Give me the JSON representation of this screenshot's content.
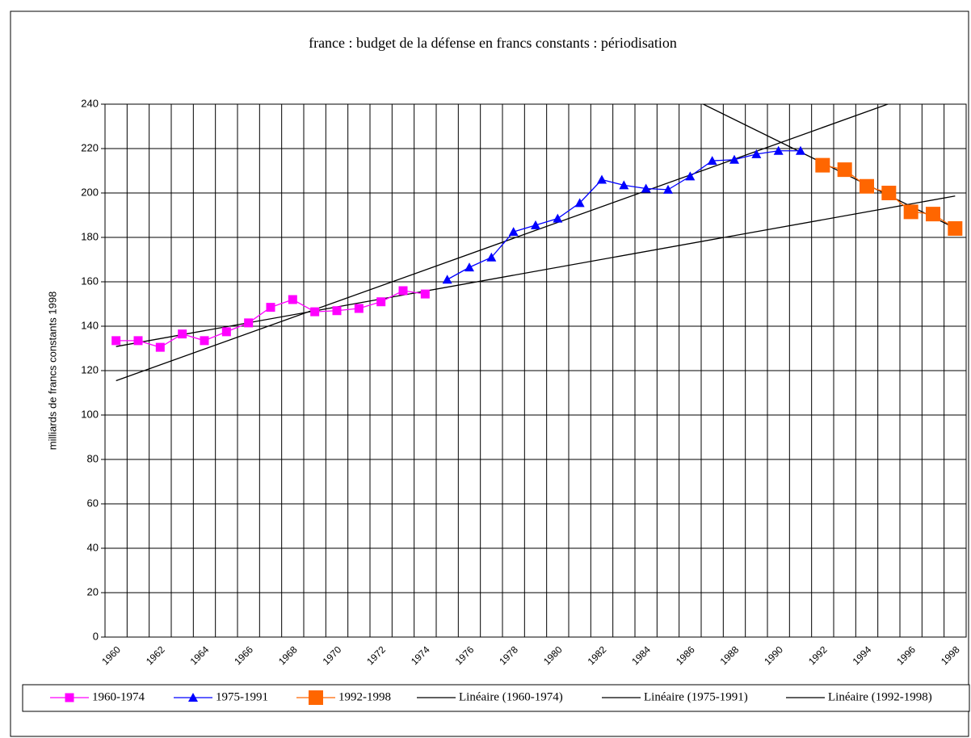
{
  "chart_data": {
    "type": "line",
    "title": "france : budget de la défense en francs constants : périodisation",
    "y_label": "milliards de francs constants 1998",
    "categories": [
      "1960",
      null,
      "1962",
      null,
      "1964",
      null,
      "1966",
      null,
      "1968",
      null,
      "1970",
      null,
      "1972",
      null,
      "1974",
      null,
      "1976",
      null,
      "1978",
      null,
      "1980",
      null,
      "1982",
      null,
      "1984",
      null,
      "1986",
      null,
      "1988",
      null,
      "1990",
      null,
      "1992",
      null,
      "1994",
      null,
      "1996",
      null,
      "1998"
    ],
    "series": [
      {
        "name": "1960-1974",
        "color": "#ff00ff",
        "marker": "square",
        "values": [
          133.5,
          133.5,
          130.5,
          136.5,
          133.5,
          137.5,
          141.5,
          148.5,
          152,
          146.5,
          147,
          148,
          151,
          156,
          154.5,
          null,
          null,
          null,
          null,
          null,
          null,
          null,
          null,
          null,
          null,
          null,
          null,
          null,
          null,
          null,
          null,
          null,
          null,
          null,
          null,
          null,
          null,
          null,
          null
        ]
      },
      {
        "name": "1975-1991",
        "color": "#0000ff",
        "marker": "triangle",
        "values": [
          null,
          null,
          null,
          null,
          null,
          null,
          null,
          null,
          null,
          null,
          null,
          null,
          null,
          null,
          null,
          161,
          166.5,
          171,
          182.5,
          185.5,
          188.5,
          195.5,
          206,
          203.5,
          202,
          201.5,
          207.5,
          214.5,
          215,
          217.5,
          219,
          219,
          null,
          null,
          null,
          null,
          null,
          null,
          null
        ]
      },
      {
        "name": "1992-1998",
        "color": "#ff6600",
        "marker": "big-square",
        "values": [
          null,
          null,
          null,
          null,
          null,
          null,
          null,
          null,
          null,
          null,
          null,
          null,
          null,
          null,
          null,
          null,
          null,
          null,
          null,
          null,
          null,
          null,
          null,
          null,
          null,
          null,
          null,
          null,
          null,
          null,
          null,
          null,
          212.5,
          210.5,
          203,
          200,
          191.5,
          190.5,
          184
        ]
      }
    ],
    "trendlines": [
      {
        "name": "Linéaire (1960-1974)",
        "series": 0,
        "color": "#000000"
      },
      {
        "name": "Linéaire (1975-1991)",
        "series": 1,
        "color": "#000000"
      },
      {
        "name": "Linéaire (1992-1998)",
        "series": 2,
        "color": "#000000"
      }
    ],
    "ylim": [
      0,
      240
    ],
    "yticks": [
      0,
      20,
      40,
      60,
      80,
      100,
      120,
      140,
      160,
      180,
      200,
      220,
      240
    ],
    "grid": true,
    "legend": "bottom"
  }
}
